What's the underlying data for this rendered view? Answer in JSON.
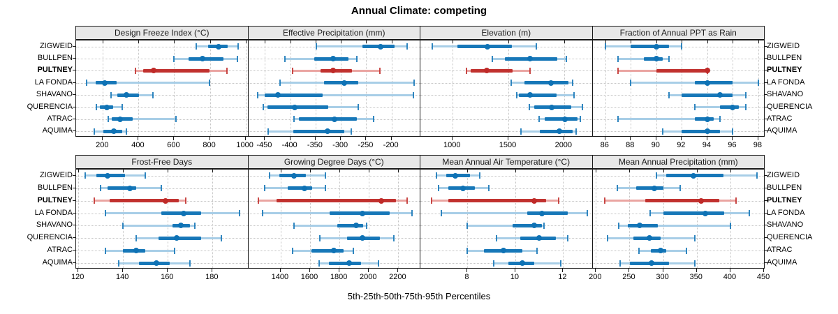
{
  "chart_data": {
    "type": "scatter",
    "subtype": "trellis-percentile-dotplot",
    "title": "Annual Climate: competing",
    "xlabel": "5th-25th-50th-75th-95th Percentiles",
    "percentiles": [
      "5th",
      "25th",
      "50th",
      "75th",
      "95th"
    ],
    "sites": [
      "ZIGWEID",
      "BULLPEN",
      "PULTNEY",
      "LA FONDA",
      "SHAVANO",
      "QUERENCIA",
      "ATRAC",
      "AQUIMA"
    ],
    "highlighted_site": "PULTNEY",
    "grid": "dotted",
    "legend_position": "none",
    "colors": {
      "blue_dark": "#0e72b5",
      "blue_light": "#a8cee7",
      "red_dark": "#bf2a28",
      "red_light": "#eaa5a2",
      "strip_bg": "#e8e8e8",
      "border": "#1a1a1a",
      "gridline": "#c4c4c4"
    },
    "panels": [
      {
        "label": "Design Freeze Index (°C)",
        "row": 0,
        "col": 0,
        "xlim": [
          50,
          1015
        ],
        "ticks": [
          200,
          400,
          600,
          800,
          1000
        ],
        "values": [
          [
            722,
            790,
            849,
            900,
            960
          ],
          [
            600,
            680,
            758,
            875,
            953
          ],
          [
            382,
            425,
            484,
            797,
            897
          ],
          [
            109,
            158,
            210,
            276,
            797
          ],
          [
            246,
            282,
            332,
            403,
            481
          ],
          [
            165,
            184,
            221,
            256,
            308
          ],
          [
            230,
            250,
            298,
            367,
            610
          ],
          [
            152,
            204,
            263,
            308,
            330
          ]
        ]
      },
      {
        "label": "Effective Precipitation (mm)",
        "row": 0,
        "col": 1,
        "xlim": [
          -483,
          -143
        ],
        "ticks": [
          -450,
          -400,
          -350,
          -300,
          -250,
          -200
        ],
        "values": [
          [
            -348,
            -257,
            -222,
            -194,
            -169
          ],
          [
            -410,
            -352,
            -315,
            -285,
            -269
          ],
          [
            -395,
            -340,
            -315,
            -278,
            -223
          ],
          [
            -420,
            -334,
            -294,
            -266,
            -156
          ],
          [
            -464,
            -450,
            -424,
            -336,
            -157
          ],
          [
            -453,
            -445,
            -391,
            -325,
            -266
          ],
          [
            -392,
            -383,
            -312,
            -269,
            -235
          ],
          [
            -444,
            -394,
            -327,
            -294,
            -280
          ]
        ]
      },
      {
        "label": "Elevation (m)",
        "row": 0,
        "col": 2,
        "xlim": [
          710,
          2255
        ],
        "ticks": [
          1000,
          1500,
          2000
        ],
        "values": [
          [
            815,
            1045,
            1310,
            1530,
            1750
          ],
          [
            1358,
            1467,
            1695,
            1940,
            2019
          ],
          [
            1126,
            1162,
            1305,
            1540,
            1695
          ],
          [
            1526,
            1646,
            1882,
            2036,
            2074
          ],
          [
            1573,
            1594,
            1693,
            1930,
            2088
          ],
          [
            1688,
            1731,
            1888,
            2067,
            2162
          ],
          [
            1773,
            1825,
            2008,
            2120,
            2145
          ],
          [
            1611,
            1783,
            1958,
            2078,
            2109
          ]
        ]
      },
      {
        "label": "Fraction of Annual PPT as Rain",
        "row": 0,
        "col": 3,
        "xlim": [
          85,
          98.5
        ],
        "ticks": [
          86,
          88,
          90,
          92,
          94,
          96,
          98
        ],
        "values": [
          [
            86,
            88,
            90,
            91,
            92
          ],
          [
            87,
            89,
            90,
            90.5,
            91
          ],
          [
            87,
            90,
            94,
            94,
            94
          ],
          [
            88,
            93,
            94,
            96,
            98
          ],
          [
            91,
            92,
            95,
            96,
            97
          ],
          [
            93,
            95,
            96,
            96.5,
            97
          ],
          [
            87,
            93,
            94,
            94.5,
            95
          ],
          [
            90.5,
            92,
            94,
            95,
            96
          ]
        ]
      },
      {
        "label": "Frost-Free Days",
        "row": 1,
        "col": 0,
        "xlim": [
          119,
          196
        ],
        "ticks": [
          120,
          140,
          160,
          180
        ],
        "values": [
          [
            123,
            128,
            133,
            141,
            150
          ],
          [
            130,
            133,
            143,
            146,
            157
          ],
          [
            127,
            134,
            159,
            165,
            168
          ],
          [
            132,
            157,
            167,
            175,
            192
          ],
          [
            140,
            162,
            166,
            170,
            172
          ],
          [
            146,
            156,
            164,
            175,
            184
          ],
          [
            132,
            140,
            146,
            150,
            163
          ],
          [
            138,
            147,
            155,
            161,
            170
          ]
        ]
      },
      {
        "label": "Growing Degree Days (°C)",
        "row": 1,
        "col": 1,
        "xlim": [
          1180,
          2350
        ],
        "ticks": [
          1400,
          1600,
          1800,
          2000,
          2200
        ],
        "values": [
          [
            1325,
            1390,
            1490,
            1570,
            1705
          ],
          [
            1290,
            1450,
            1560,
            1615,
            1705
          ],
          [
            1250,
            1370,
            2085,
            2185,
            2260
          ],
          [
            1275,
            1735,
            1955,
            2140,
            2295
          ],
          [
            1490,
            1785,
            1912,
            1960,
            1985
          ],
          [
            1665,
            1850,
            1955,
            2075,
            2170
          ],
          [
            1480,
            1610,
            1760,
            1830,
            1895
          ],
          [
            1660,
            1730,
            1865,
            1945,
            2065
          ]
        ]
      },
      {
        "label": "Mean Annual Air Temperature (°C)",
        "row": 1,
        "col": 2,
        "xlim": [
          6.03,
          13.23
        ],
        "ticks": [
          8,
          10,
          12
        ],
        "values": [
          [
            6.7,
            7.1,
            7.5,
            8.1,
            8.5
          ],
          [
            6.8,
            7.2,
            7.8,
            8.3,
            8.9
          ],
          [
            6.5,
            7.2,
            10.8,
            11.3,
            11.8
          ],
          [
            6.9,
            10.5,
            11.1,
            12.2,
            13.0
          ],
          [
            8.0,
            9.9,
            10.8,
            11.1,
            11.2
          ],
          [
            9.2,
            10.2,
            11.0,
            11.7,
            12.2
          ],
          [
            8.0,
            8.7,
            9.5,
            10.3,
            10.9
          ],
          [
            9.1,
            9.7,
            10.3,
            10.8,
            11.9
          ]
        ]
      },
      {
        "label": "Mean Annual Precipitation (mm)",
        "row": 1,
        "col": 3,
        "xlim": [
          195,
          451
        ],
        "ticks": [
          200,
          250,
          300,
          350,
          400,
          450
        ],
        "values": [
          [
            290,
            305,
            345,
            390,
            440
          ],
          [
            232,
            260,
            287,
            300,
            325
          ],
          [
            213,
            273,
            356,
            384,
            408
          ],
          [
            281,
            300,
            363,
            391,
            428
          ],
          [
            234,
            247,
            265,
            292,
            400
          ],
          [
            217,
            256,
            280,
            296,
            347
          ],
          [
            264,
            282,
            296,
            305,
            335
          ],
          [
            236,
            251,
            283,
            309,
            347
          ]
        ]
      }
    ]
  }
}
